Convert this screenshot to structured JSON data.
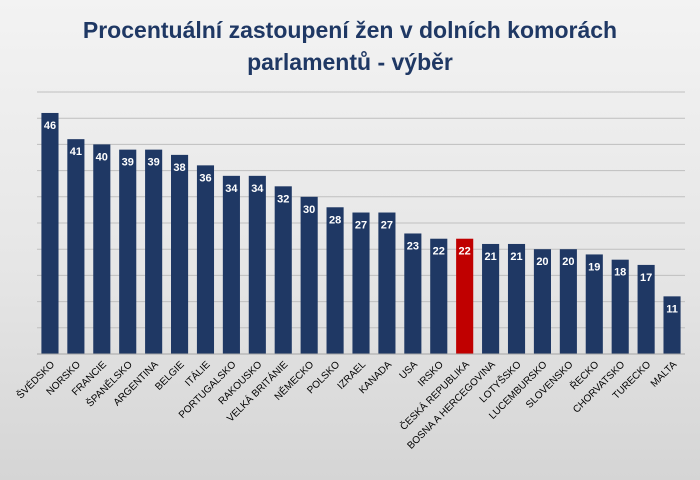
{
  "chart_data": {
    "type": "bar",
    "title": "Procentuální zastoupení žen v dolních komorách parlamentů - výběr",
    "xlabel": "",
    "ylabel": "",
    "ylim": [
      0,
      50
    ],
    "grid": true,
    "legend": "none",
    "categories": [
      "ŠVÉDSKO",
      "NORSKO",
      "FRANCIE",
      "ŠPANĚLSKO",
      "ARGENTINA",
      "BELGIE",
      "ITÁLIE",
      "PORTUGALSKO",
      "RAKOUSKO",
      "VELKÁ BRITÁNIE",
      "NĚMECKO",
      "POLSKO",
      "IZRAEL",
      "KANADA",
      "USA",
      "IRSKO",
      "ČESKÁ REPUBLIKA",
      "BOSNA A HERCEGOVINA",
      "LOTYŠSKO",
      "LUCEMBURSKO",
      "SLOVENSKO",
      "ŘECKO",
      "CHORVATSKO",
      "TURECKO",
      "MALTA"
    ],
    "values": [
      46,
      41,
      40,
      39,
      39,
      38,
      36,
      34,
      34,
      32,
      30,
      28,
      27,
      27,
      23,
      22,
      22,
      21,
      21,
      20,
      20,
      19,
      18,
      17,
      11
    ],
    "colors": {
      "bar": "#1f3864",
      "highlight": "#c00000",
      "highlight_category": "ČESKÁ REPUBLIKA",
      "value_label": "#ffffff",
      "axis_label": "#000000",
      "grid": "#bfbfbf"
    }
  }
}
